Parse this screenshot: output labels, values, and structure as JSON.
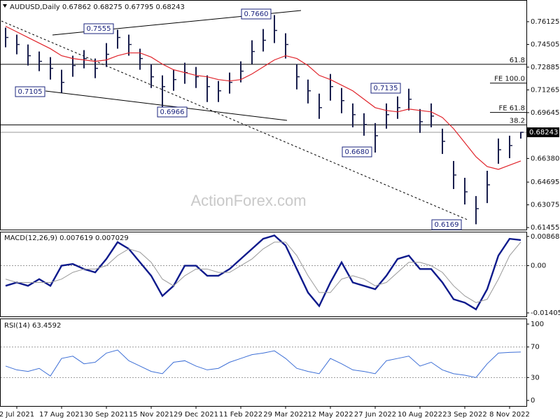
{
  "chart_data": [
    {
      "type": "ohlc",
      "title": "AUDUSD,Daily 0.67862 0.68275 0.67795 0.68243",
      "watermark": "ActionForex.com",
      "categories": [
        null,
        "2 Jul 2021",
        null,
        null,
        null,
        "17 Aug 2021",
        null,
        null,
        null,
        "30 Sep 2021",
        null,
        null,
        null,
        "15 Nov 2021",
        null,
        null,
        null,
        "29 Dec 2021",
        null,
        null,
        null,
        "11 Feb 2022",
        null,
        null,
        null,
        "29 Mar 2022",
        null,
        null,
        null,
        "12 May 2022",
        null,
        null,
        null,
        "27 Jun 2022",
        null,
        null,
        null,
        "10 Aug 2022",
        null,
        null,
        null,
        "23 Sep 2022",
        null,
        null,
        null,
        "8 Nov 2022",
        null
      ],
      "high": [
        0.757,
        0.752,
        0.745,
        0.74,
        0.736,
        0.727,
        0.737,
        0.741,
        0.735,
        0.746,
        0.7555,
        0.752,
        0.742,
        0.731,
        0.723,
        0.727,
        0.732,
        0.729,
        0.723,
        0.719,
        0.725,
        0.733,
        0.748,
        0.756,
        0.766,
        0.753,
        0.731,
        0.72,
        0.71,
        0.724,
        0.714,
        0.703,
        0.696,
        0.689,
        0.703,
        0.708,
        0.7135,
        0.699,
        0.703,
        0.685,
        0.662,
        0.65,
        0.637,
        0.655,
        0.678,
        0.68,
        0.68275
      ],
      "low": [
        0.743,
        0.738,
        0.73,
        0.726,
        0.72,
        0.7105,
        0.722,
        0.728,
        0.721,
        0.729,
        0.742,
        0.737,
        0.727,
        0.714,
        0.6966,
        0.712,
        0.717,
        0.714,
        0.704,
        0.704,
        0.71,
        0.718,
        0.731,
        0.74,
        0.746,
        0.735,
        0.713,
        0.703,
        0.692,
        0.705,
        0.696,
        0.686,
        0.68,
        0.668,
        0.685,
        0.692,
        0.698,
        0.682,
        0.686,
        0.667,
        0.642,
        0.631,
        0.6169,
        0.632,
        0.66,
        0.664,
        0.67795
      ],
      "close": [
        0.75,
        0.745,
        0.737,
        0.733,
        0.728,
        0.718,
        0.73,
        0.735,
        0.728,
        0.738,
        0.75,
        0.745,
        0.735,
        0.722,
        0.715,
        0.72,
        0.725,
        0.722,
        0.715,
        0.712,
        0.718,
        0.726,
        0.74,
        0.748,
        0.755,
        0.745,
        0.722,
        0.712,
        0.7,
        0.715,
        0.705,
        0.695,
        0.688,
        0.68,
        0.695,
        0.7,
        0.706,
        0.69,
        0.694,
        0.676,
        0.652,
        0.64,
        0.628,
        0.645,
        0.67,
        0.673,
        0.68243
      ],
      "color": "#1a1f4d",
      "overlay": {
        "color": "#e0242b",
        "values": [
          0.758,
          0.754,
          0.75,
          0.746,
          0.742,
          0.737,
          0.735,
          0.734,
          0.733,
          0.734,
          0.737,
          0.739,
          0.739,
          0.736,
          0.731,
          0.727,
          0.725,
          0.723,
          0.722,
          0.72,
          0.719,
          0.72,
          0.724,
          0.729,
          0.734,
          0.737,
          0.735,
          0.73,
          0.723,
          0.72,
          0.716,
          0.712,
          0.706,
          0.7,
          0.698,
          0.697,
          0.699,
          0.698,
          0.697,
          0.693,
          0.685,
          0.675,
          0.665,
          0.658,
          0.656,
          0.659,
          0.662
        ]
      },
      "ylim": [
        0.6131,
        0.7762
      ],
      "yticks": [
        0.76125,
        0.74505,
        0.72885,
        0.71265,
        0.69645,
        {
          "value": 0.6638,
          "label": "0.66380"
        },
        0.64695,
        0.63075,
        0.61455
      ],
      "annotations": [
        "0.7555",
        "0.7660",
        "0.7105",
        "0.6966",
        "0.6680",
        "0.7135",
        "0.6169"
      ],
      "fib_retracements": [
        {
          "value": 0.7309,
          "label": "61.8"
        },
        {
          "value": 0.6877,
          "label": "38.2"
        }
      ],
      "fib_extensions": [
        {
          "value": 0.7175,
          "label": "FE 100.0"
        },
        {
          "value": 0.6966,
          "label": "FE 61.8"
        }
      ],
      "last_price": {
        "value": 0.68243,
        "label": "0.68243"
      }
    },
    {
      "type": "line",
      "title": "MACD(12,26,9) 0.007619 0.007029",
      "series": [
        {
          "color": "#0d1a8c",
          "width": 2.4,
          "values": [
            -0.006,
            -0.005,
            -0.006,
            -0.004,
            -0.006,
            0.0,
            0.0005,
            -0.001,
            -0.002,
            0.002,
            0.007,
            0.005,
            0.001,
            -0.003,
            -0.009,
            -0.006,
            0.0,
            0.0,
            -0.003,
            -0.003,
            -0.001,
            0.002,
            0.005,
            0.008,
            0.009,
            0.006,
            -0.001,
            -0.008,
            -0.012,
            -0.005,
            0.001,
            -0.005,
            -0.006,
            -0.007,
            -0.003,
            0.002,
            0.003,
            -0.001,
            -0.001,
            -0.005,
            -0.01,
            -0.011,
            -0.013,
            -0.007,
            0.003,
            0.008,
            0.007619
          ]
        },
        {
          "color": "#9a9a9a",
          "width": 1,
          "values": [
            -0.004,
            -0.005,
            -0.005,
            -0.005,
            -0.005,
            -0.004,
            -0.002,
            -0.001,
            -0.001,
            0.0,
            0.003,
            0.005,
            0.004,
            0.001,
            -0.004,
            -0.006,
            -0.003,
            -0.001,
            -0.001,
            -0.002,
            -0.002,
            0.0,
            0.002,
            0.005,
            0.007,
            0.007,
            0.003,
            -0.003,
            -0.008,
            -0.008,
            -0.004,
            -0.003,
            -0.004,
            -0.006,
            -0.005,
            -0.002,
            0.001,
            0.001,
            0.0,
            -0.002,
            -0.006,
            -0.009,
            -0.011,
            -0.01,
            -0.004,
            0.003,
            0.007029
          ]
        }
      ],
      "ylim": [
        -0.0151,
        0.0099
      ],
      "yticks": [
        0.008687,
        {
          "value": 0,
          "label": "0.00"
        },
        -0.014056
      ],
      "reference_lines": [
        0
      ]
    },
    {
      "type": "line",
      "title": "RSI(14) 63.4592",
      "series": [
        {
          "color": "#3d6fd6",
          "width": 1,
          "values": [
            45,
            40,
            38,
            42,
            32,
            55,
            58,
            48,
            50,
            62,
            66,
            52,
            45,
            38,
            35,
            50,
            52,
            45,
            40,
            42,
            50,
            55,
            60,
            62,
            65,
            55,
            42,
            38,
            35,
            55,
            48,
            40,
            38,
            35,
            52,
            55,
            58,
            45,
            50,
            40,
            35,
            33,
            30,
            48,
            62,
            63,
            63.4592
          ]
        }
      ],
      "ylim": [
        -7.3,
        106.4
      ],
      "yticks": [
        100,
        70,
        30,
        0
      ],
      "reference_lines": [
        70,
        30
      ]
    }
  ]
}
